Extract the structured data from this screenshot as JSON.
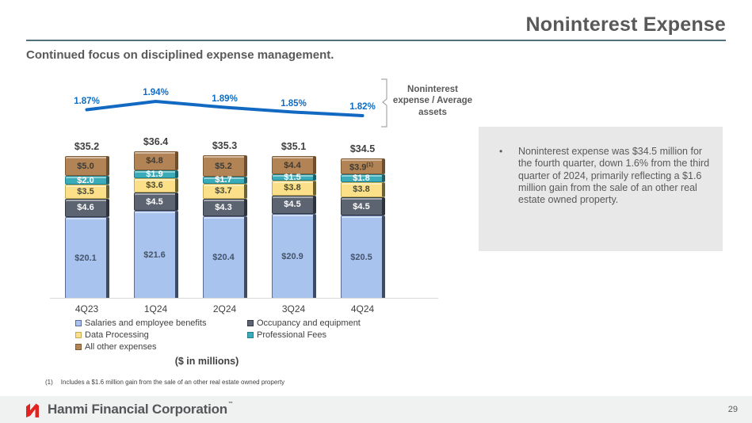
{
  "header": {
    "title": "Noninterest Expense",
    "subtitle": "Continued focus on disciplined expense management."
  },
  "chart_data": {
    "type": "bar",
    "subtype": "stacked-bar-with-line-overlay",
    "unit_caption": "($ in millions)",
    "categories": [
      "4Q23",
      "1Q24",
      "2Q24",
      "3Q24",
      "4Q24"
    ],
    "series": [
      {
        "name": "Salaries and employee benefits",
        "values": [
          20.1,
          21.6,
          20.4,
          20.9,
          20.5
        ],
        "fill": "#a9c3ef",
        "border": "#5b6b94",
        "side": "#3f4a63",
        "label_color": "#44546a"
      },
      {
        "name": "Occupancy and equipment",
        "values": [
          4.6,
          4.5,
          4.3,
          4.5,
          4.5
        ],
        "fill": "#5b6470",
        "border": "#333a44",
        "side": "#2c333c",
        "label_color": "#ffffff"
      },
      {
        "name": "Data Processing",
        "values": [
          3.5,
          3.6,
          3.7,
          3.8,
          3.8
        ],
        "fill": "#fbe089",
        "border": "#c3ac55",
        "side": "#6b6133",
        "label_color": "#4a4a33"
      },
      {
        "name": "Professional Fees",
        "values": [
          2.0,
          1.9,
          1.7,
          1.5,
          1.8
        ],
        "fill": "#3aabb9",
        "border": "#21808d",
        "side": "#1c5f6b",
        "label_color": "#ffffff"
      },
      {
        "name": "All other expenses",
        "values": [
          5.0,
          4.8,
          5.2,
          4.4,
          3.9
        ],
        "fill": "#b28455",
        "border": "#7d5a33",
        "side": "#6e4e2c",
        "label_color": "#3f3a33"
      }
    ],
    "totals": [
      "$35.2",
      "$36.4",
      "$35.3",
      "$35.1",
      "$34.5"
    ],
    "line": {
      "label": "Noninterest expense / Average assets",
      "values": [
        1.87,
        1.94,
        1.89,
        1.85,
        1.82
      ],
      "tick_labels": [
        "1.87%",
        "1.94%",
        "1.89%",
        "1.85%",
        "1.82%"
      ],
      "color": "#1269c2",
      "tick_label_color": "#0f6cc4"
    },
    "footnote_ref": {
      "category_index": 4,
      "series_index": 4,
      "marker": "(1)"
    },
    "legend_columns": [
      [
        0,
        2,
        4
      ],
      [
        1,
        3
      ]
    ],
    "ylim_note": "bars drawn to common scale, baseline 0"
  },
  "callout": {
    "bullet": "•",
    "text": "Noninterest expense was $34.5 million for the fourth quarter, down 1.6% from the third quarter of 2024, primarily reflecting a $1.6 million gain from the sale of an other real estate owned property."
  },
  "footnote": {
    "marker": "(1)",
    "text": "Includes a $1.6 million gain from the sale of an other real estate owned property"
  },
  "footer": {
    "brand": "Hanmi Financial Corporation",
    "trademark": "™",
    "page": "29"
  }
}
